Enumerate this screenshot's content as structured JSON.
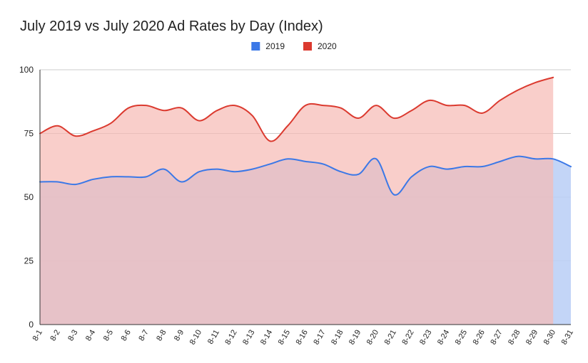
{
  "chart_data": {
    "type": "area",
    "title": "July 2019 vs July 2020 Ad Rates by Day (Index)",
    "xlabel": "",
    "ylabel": "",
    "ylim": [
      0,
      100
    ],
    "yticks": [
      0,
      25,
      50,
      75,
      100
    ],
    "ytick_labels": [
      "0",
      "25",
      "50",
      "75",
      "100"
    ],
    "grid": true,
    "legend_position": "top-center",
    "categories": [
      "8-1",
      "8-2",
      "8-3",
      "8-4",
      "8-5",
      "8-6",
      "8-7",
      "8-8",
      "8-9",
      "8-10",
      "8-11",
      "8-12",
      "8-13",
      "8-14",
      "8-15",
      "8-16",
      "8-17",
      "8-18",
      "8-19",
      "8-20",
      "8-21",
      "8-22",
      "8-23",
      "8-24",
      "8-25",
      "8-26",
      "8-27",
      "8-28",
      "8-29",
      "8-30",
      "8-31"
    ],
    "series": [
      {
        "name": "2019",
        "color": "#3b78e7",
        "fill": "#bcd0f6",
        "values": [
          56,
          56,
          55,
          57,
          58,
          58,
          58,
          61,
          56,
          60,
          61,
          60,
          61,
          63,
          65,
          64,
          63,
          60,
          59,
          65,
          51,
          58,
          62,
          61,
          62,
          62,
          64,
          66,
          65,
          65,
          62
        ]
      },
      {
        "name": "2020",
        "color": "#db3a2f",
        "fill": "#f6b9b4",
        "values": [
          75,
          78,
          74,
          76,
          79,
          85,
          86,
          84,
          85,
          80,
          84,
          86,
          82,
          72,
          78,
          86,
          86,
          85,
          81,
          86,
          81,
          84,
          88,
          86,
          86,
          83,
          88,
          92,
          95,
          97,
          null
        ]
      }
    ]
  }
}
